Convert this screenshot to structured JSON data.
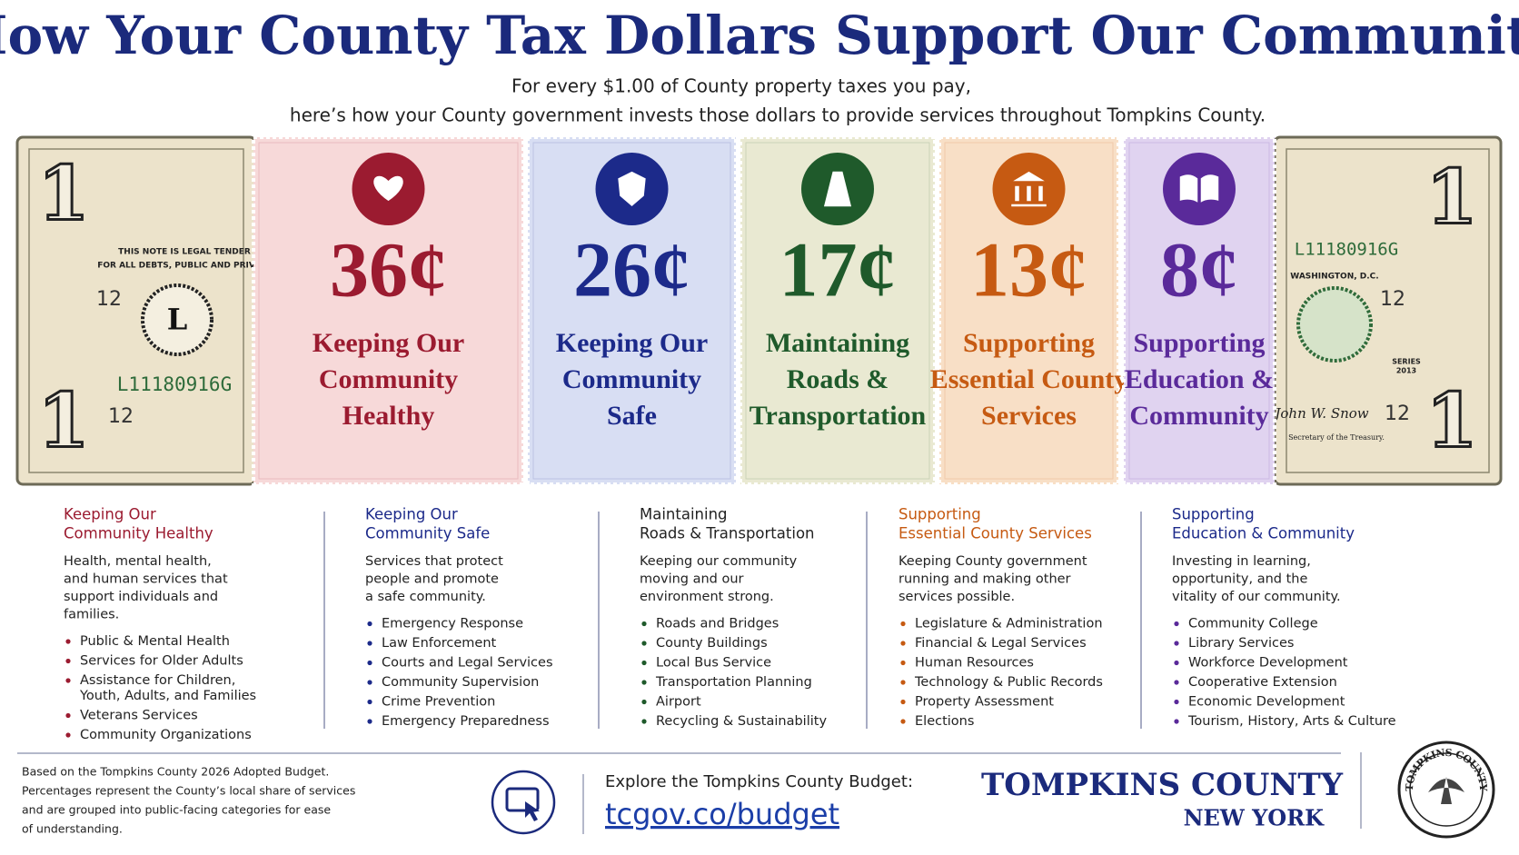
{
  "header": {
    "title": "How Your County Tax Dollars Support Our Community",
    "subtitle": [
      "For every $1.00 of County property taxes you pay,",
      "here’s how your County government invests those dollars to provide services throughout Tompkins County."
    ]
  },
  "bill_left": {
    "legal": [
      "THIS NOTE IS LEGAL TENDER",
      "FOR ALL DEBTS, PUBLIC AND PRIVATE"
    ],
    "number_top": "12",
    "seal": "L",
    "serial": "L11180916G",
    "number_bottom": "12",
    "denomination": "1"
  },
  "bill_right": {
    "serial": "L11180916G",
    "place": "WASHINGTON, D.C.",
    "number_top": "12",
    "series": [
      "SERIES",
      "2013"
    ],
    "signature": "John W. Snow",
    "number_bottom": "12",
    "signer_title": "Secretary of the Treasury.",
    "denomination": "1"
  },
  "tickets": [
    {
      "amount": "36¢",
      "label": [
        "Keeping Our",
        "Community",
        "Healthy"
      ]
    },
    {
      "amount": "26¢",
      "label": [
        "Keeping Our",
        "Community",
        "Safe"
      ]
    },
    {
      "amount": "17¢",
      "label": [
        "Maintaining",
        "Roads &",
        "Transportation"
      ]
    },
    {
      "amount": "13¢",
      "label": [
        "Supporting",
        "Essential County",
        "Services"
      ]
    },
    {
      "amount": "8¢",
      "label": [
        "Supporting",
        "Education &",
        "Community"
      ]
    }
  ],
  "categories": [
    {
      "title": [
        "Keeping Our",
        "Community Healthy"
      ],
      "description": [
        "Health, mental health,",
        "and human services that",
        "support individuals and",
        "families."
      ],
      "items": [
        [
          "Public & Mental Health"
        ],
        [
          "Services for Older Adults"
        ],
        [
          "Assistance for Children,",
          "Youth, Adults, and Families"
        ],
        [
          "Veterans Services"
        ],
        [
          "Community Organizations"
        ]
      ]
    },
    {
      "title": [
        "Keeping Our",
        "Community Safe"
      ],
      "description": [
        "Services that protect",
        "people and promote",
        "a safe community."
      ],
      "items": [
        [
          "Emergency Response"
        ],
        [
          "Law Enforcement"
        ],
        [
          "Courts and Legal Services"
        ],
        [
          "Community Supervision"
        ],
        [
          "Crime Prevention"
        ],
        [
          "Emergency Preparedness"
        ]
      ]
    },
    {
      "title": [
        "Maintaining",
        "Roads & Transportation"
      ],
      "description": [
        "Keeping our community",
        "moving and our",
        "environment strong."
      ],
      "items": [
        [
          "Roads and Bridges"
        ],
        [
          "County Buildings"
        ],
        [
          "Local Bus Service"
        ],
        [
          "Transportation Planning"
        ],
        [
          "Airport"
        ],
        [
          "Recycling & Sustainability"
        ]
      ]
    },
    {
      "title": [
        "Supporting",
        "Essential County Services"
      ],
      "description": [
        "Keeping County government",
        "running and making other",
        "services possible."
      ],
      "items": [
        [
          "Legislature & Administration"
        ],
        [
          "Financial & Legal Services"
        ],
        [
          "Human Resources"
        ],
        [
          "Technology & Public Records"
        ],
        [
          "Property Assessment"
        ],
        [
          "Elections"
        ]
      ]
    },
    {
      "title": [
        "Supporting",
        "Education & Community"
      ],
      "description": [
        "Investing in learning,",
        "opportunity, and the",
        "vitality of our community."
      ],
      "items": [
        [
          "Community College"
        ],
        [
          "Library Services"
        ],
        [
          "Workforce Development"
        ],
        [
          "Cooperative Extension"
        ],
        [
          "Economic Development"
        ],
        [
          "Tourism, History, Arts & Culture"
        ]
      ]
    }
  ],
  "footer": {
    "note": [
      "Based on the Tompkins County 2026 Adopted Budget.",
      "Percentages represent the County’s local share of services",
      "and are grouped into public-facing categories for ease",
      "of understanding."
    ],
    "cta": "Explore the Tompkins County Budget:",
    "link": "tcgov.co/budget",
    "org": [
      "TOMPKINS COUNTY",
      "NEW YORK"
    ],
    "seal": "TOMPKINS COUNTY"
  }
}
